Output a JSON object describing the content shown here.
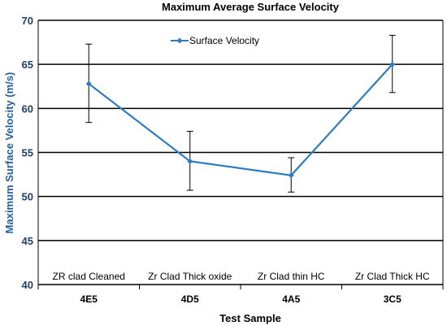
{
  "chart_data": {
    "type": "line",
    "title": "Maximum Average Surface Velocity",
    "xlabel": "Test Sample",
    "ylabel": "Maximum Surface Velocity (m/s)",
    "ylim": [
      40,
      70
    ],
    "yticks": [
      40,
      45,
      50,
      55,
      60,
      65,
      70
    ],
    "grid": "horizontal",
    "legend_position": "top-left",
    "categories": [
      "4E5",
      "4D5",
      "4A5",
      "3C5"
    ],
    "annotations": [
      "ZR clad Cleaned",
      "Zr Clad Thick oxide",
      "Zr Clad thin HC",
      "Zr Clad Thick HC"
    ],
    "series": [
      {
        "name": "Surface Velocity",
        "color": "#2e7bbf",
        "values": [
          62.8,
          54.0,
          52.4,
          65.0
        ],
        "error_low": [
          58.4,
          50.7,
          50.5,
          61.8
        ],
        "error_high": [
          67.3,
          57.4,
          54.4,
          68.3
        ]
      }
    ]
  }
}
